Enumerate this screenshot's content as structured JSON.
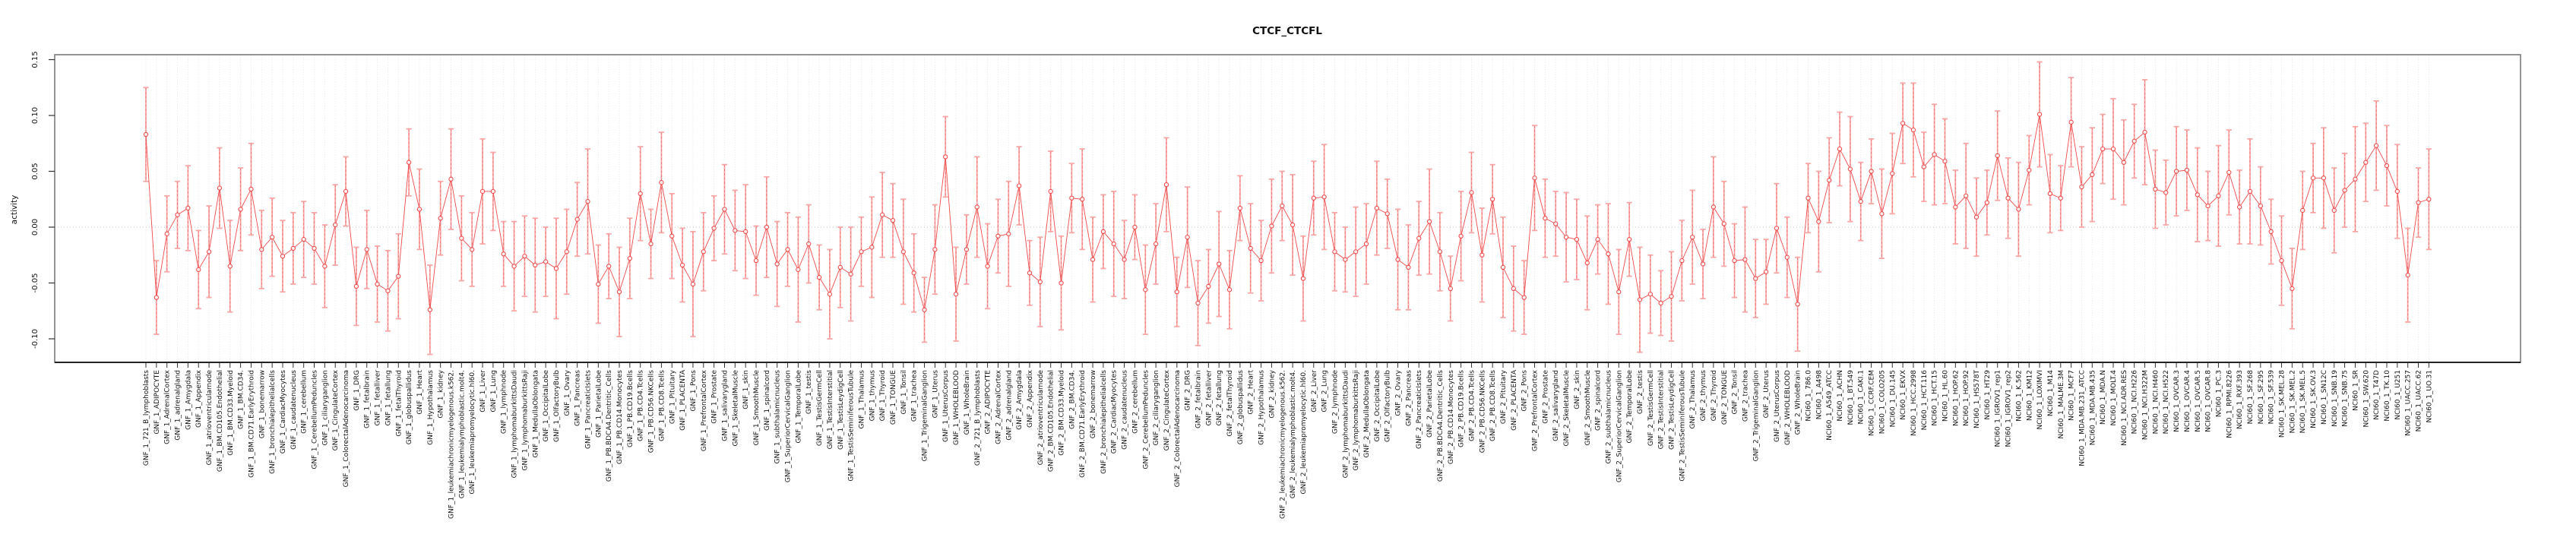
{
  "chart_data": {
    "type": "scatter",
    "title": "CTCF_CTCFL",
    "ylabel": "activity",
    "xlabel": "",
    "ylim": [
      -0.121,
      0.154
    ],
    "yticks": [
      0.15,
      0.1,
      0.05,
      0.0,
      -0.05,
      -0.1
    ],
    "ytick_labels": [
      "0.15",
      "0.10",
      "0.05",
      "0.00",
      "-0.05",
      "-0.10"
    ],
    "zero_reference_line": 0.0,
    "grid": "vertical-dotted-per-category",
    "legend": "none",
    "marker": "open-circle-with-error-bars",
    "series_color": "#ef4a4a",
    "errorbar_color": "#f8a6a6",
    "errorbar_dash_color": "#f07070",
    "n_points": 218,
    "categories": [
      "GNF_1_721_B_lymphoblasts",
      "GNF_1_ADIPOCYTE",
      "GNF_1_AdrenalCortex",
      "GNF_1_adrenalgland",
      "GNF_1_Amygdala",
      "GNF_1_Appendix",
      "GNF_1_atrioventricularnode",
      "GNF_1_BM.CD105.Endothelial",
      "GNF_1_BM.CD33.Myeloid",
      "GNF_1_BM.CD34.",
      "GNF_1_BM.CD71.EarlyErythroid",
      "GNF_1_bonemarrow",
      "GNF_1_bronchialepithelialcells",
      "GNF_1_CardiacMyocytes",
      "GNF_1_caudatenucleus",
      "GNF_1_cerebellum",
      "GNF_1_CerebellumPeduncles",
      "GNF_1_ciliaryganglion",
      "GNF_1_CingulateCortex",
      "GNF_1_ColorectalAdenocarcinoma",
      "GNF_1_DRG",
      "GNF_1_fetalbrain",
      "GNF_1_fetalliver",
      "GNF_1_fetallung",
      "GNF_1_fetalThyroid",
      "GNF_1_globuspallidus",
      "GNF_1_Heart",
      "GNF_1_Hypothalamus",
      "GNF_1_kidney",
      "GNF_1_leukemiachronicmyelogenous.k562.",
      "GNF_1_leukemialymphoblastic.molt4.",
      "GNF_1_leukemiapromyelocytic.hl60.",
      "GNF_1_Liver",
      "GNF_1_Lung",
      "GNF_1_lymphnode",
      "GNF_1_lymphomaburkittsDaudi",
      "GNF_1_lymphomaburkittsRaji",
      "GNF_1_MedullaOblongata",
      "GNF_1_OccipitalLobe",
      "GNF_1_OlfactoryBulb",
      "GNF_1_Ovary",
      "GNF_1_Pancreas",
      "GNF_1_PancreaticIslets",
      "GNF_1_ParietalLobe",
      "GNF_1_PB.BDCA4.Dentritic_Cells",
      "GNF_1_PB.CD14.Monocytes",
      "GNF_1_PB.CD19.Bcells",
      "GNF_1_PB.CD4.Tcells",
      "GNF_1_PB.CD56.NKCells",
      "GNF_1_PB.CD8.Tcells",
      "GNF_1_Pituitary",
      "GNF_1_PLACENTA",
      "GNF_1_Pons",
      "GNF_1_PrefrontalCortex",
      "GNF_1_Prostate",
      "GNF_1_salivarygland",
      "GNF_1_SkeletalMuscle",
      "GNF_1_skin",
      "GNF_1_SmoothMuscle",
      "GNF_1_spinalcord",
      "GNF_1_subthalamicnucleus",
      "GNF_1_SuperiorCervicalGanglion",
      "GNF_1_TemporalLobe",
      "GNF_1_testis",
      "GNF_1_TestisGermCell",
      "GNF_1_TestisInterstitial",
      "GNF_1_TestisLeydigCell",
      "GNF_1_TestisSeminiferousTubule",
      "GNF_1_Thalamus",
      "GNF_1_thymus",
      "GNF_1_Thyroid",
      "GNF_1_TONGUE",
      "GNF_1_Tonsil",
      "GNF_1_trachea",
      "GNF_1_TrigeminalGanglion",
      "GNF_1_Uterus",
      "GNF_1_UterusCorpus",
      "GNF_1_WHOLEBLOOD",
      "GNF_1_WholeBrain",
      "GNF_2_721_B_lymphoblasts",
      "GNF_2_ADIPOCYTE",
      "GNF_2_AdrenalCortex",
      "GNF_2_adrenalgland",
      "GNF_2_Amygdala",
      "GNF_2_Appendix",
      "GNF_2_atrioventricularnode",
      "GNF_2_BM.CD105.Endothelial",
      "GNF_2_BM.CD33.Myeloid",
      "GNF_2_BM.CD34.",
      "GNF_2_BM.CD71.EarlyErythroid",
      "GNF_2_bonemarrow",
      "GNF_2_bronchialepithelialcells",
      "GNF_2_CardiacMyocytes",
      "GNF_2_caudatenucleus",
      "GNF_2_cerebellum",
      "GNF_2_CerebellumPeduncles",
      "GNF_2_ciliaryganglion",
      "GNF_2_CingulateCortex",
      "GNF_2_ColorectalAdenocarcinoma",
      "GNF_2_DRG",
      "GNF_2_fetalbrain",
      "GNF_2_fetalliver",
      "GNF_2_fetallung",
      "GNF_2_fetalThyroid",
      "GNF_2_globuspallidus",
      "GNF_2_Heart",
      "GNF_2_Hypothalamus",
      "GNF_2_kidney",
      "GNF_2_leukemiachronicmyelogenous.k562.",
      "GNF_2_leukemialymphoblastic.molt4.",
      "GNF_2_leukemiapromyelocytic.hl60.",
      "GNF_2_Liver",
      "GNF_2_Lung",
      "GNF_2_lymphnode",
      "GNF_2_lymphomaburkittsDaudi",
      "GNF_2_lymphomaburkittsRaji",
      "GNF_2_MedullaOblongata",
      "GNF_2_OccipitalLobe",
      "GNF_2_OlfactoryBulb",
      "GNF_2_Ovary",
      "GNF_2_Pancreas",
      "GNF_2_PancreaticIslets",
      "GNF_2_ParietalLobe",
      "GNF_2_PB.BDCA4.Dentritic_Cells",
      "GNF_2_PB.CD14.Monocytes",
      "GNF_2_PB.CD19.Bcells",
      "GNF_2_PB.CD4.Tcells",
      "GNF_2_PB.CD56.NKCells",
      "GNF_2_PB.CD8.Tcells",
      "GNF_2_Pituitary",
      "GNF_2_PLACENTA",
      "GNF_2_Pons",
      "GNF_2_PrefrontalCortex",
      "GNF_2_Prostate",
      "GNF_2_salivarygland",
      "GNF_2_SkeletalMuscle",
      "GNF_2_skin",
      "GNF_2_SmoothMuscle",
      "GNF_2_spinalcord",
      "GNF_2_subthalamicnucleus",
      "GNF_2_SuperiorCervicalGanglion",
      "GNF_2_TemporalLobe",
      "GNF_2_testis",
      "GNF_2_TestisGermCell",
      "GNF_2_TestisInterstitial",
      "GNF_2_TestisLeydigCell",
      "GNF_2_TestisSeminiferousTubule",
      "GNF_2_Thalamus",
      "GNF_2_thymus",
      "GNF_2_Thyroid",
      "GNF_2_TONGUE",
      "GNF_2_Tonsil",
      "GNF_2_trachea",
      "GNF_2_TrigeminalGanglion",
      "GNF_2_Uterus",
      "GNF_2_UterusCorpus",
      "GNF_2_WHOLEBLOOD",
      "GNF_2_WholeBrain",
      "NCI60_1_786.0",
      "NCI60_1_A498",
      "NCI60_1_A549_ATCC",
      "NCI60_1_ACHN",
      "NCI60_1_BT.549",
      "NCI60_1_CAKI.1",
      "NCI60_1_CCRF.CEM",
      "NCI60_1_COLO205",
      "NCI60_1_DU.145",
      "NCI60_1_EKVX",
      "NCI60_1_HCC.2998",
      "NCI60_1_HCT.116",
      "NCI60_1_HCT.15",
      "NCI60_1_HL.60",
      "NCI60_1_HOP.62",
      "NCI60_1_HOP.92",
      "NCI60_1_HS578T",
      "NCI60_1_HT29",
      "NCI60_1_IGROV1_rep1",
      "NCI60_1_IGROV1_rep2",
      "NCI60_1_K.562",
      "NCI60_1_KM12",
      "NCI60_1_LOXIMVI",
      "NCI60_1_M14",
      "NCI60_1_MALME.3M",
      "NCI60_1_MCF7",
      "NCI60_1_MDA.MB.231_ATCC",
      "NCI60_1_MDA.MB.435",
      "NCI60_1_MDA.N",
      "NCI60_1_MOLT.4",
      "NCI60_1_NCI.ADR.RES",
      "NCI60_1_NCI.H226",
      "NCI60_1_NCI.H322M",
      "NCI60_1_NCI.H460",
      "NCI60_1_NCI.H522",
      "NCI60_1_OVCAR.3",
      "NCI60_1_OVCAR.4",
      "NCI60_1_OVCAR.5",
      "NCI60_1_OVCAR.8",
      "NCI60_1_PC.3",
      "NCI60_1_RPMI.8226",
      "NCI60_1_RXF.393",
      "NCI60_1_SF.268",
      "NCI60_1_SF.295",
      "NCI60_1_SF.539",
      "NCI60_1_SK.MEL.28",
      "NCI60_1_SK.MEL.2",
      "NCI60_1_SK.MEL.5",
      "NCI60_1_SK.OV.3",
      "NCI60_1_SN12C",
      "NCI60_1_SNB.19",
      "NCI60_1_SNB.75",
      "NCI60_1_SR",
      "NCI60_1_SW.620",
      "NCI60_1_T47D",
      "NCI60_1_TK.10",
      "NCI60_1_U251",
      "NCI60_1_UACC.257",
      "NCI60_1_UACC.62",
      "NCI60_1_UO.31"
    ],
    "values": [
      0.083,
      -0.063,
      -0.006,
      0.011,
      0.017,
      -0.038,
      -0.022,
      0.035,
      -0.035,
      0.016,
      0.034,
      -0.02,
      -0.009,
      -0.026,
      -0.019,
      -0.011,
      -0.019,
      -0.035,
      0.002,
      0.032,
      -0.053,
      -0.02,
      -0.051,
      -0.057,
      -0.044,
      0.058,
      0.016,
      -0.074,
      0.008,
      0.043,
      -0.01,
      -0.02,
      0.032,
      0.032,
      -0.024,
      -0.035,
      -0.026,
      -0.034,
      -0.031,
      -0.037,
      -0.022,
      0.007,
      0.023,
      -0.051,
      -0.035,
      -0.058,
      -0.028,
      0.03,
      -0.015,
      0.04,
      -0.008,
      -0.034,
      -0.051,
      -0.022,
      -0.001,
      0.016,
      -0.003,
      -0.004,
      -0.03,
      0.0,
      -0.033,
      -0.02,
      -0.038,
      -0.015,
      -0.045,
      -0.06,
      -0.036,
      -0.042,
      -0.022,
      -0.018,
      0.011,
      0.006,
      -0.022,
      -0.041,
      -0.074,
      -0.02,
      0.063,
      -0.06,
      -0.02,
      0.018,
      -0.035,
      -0.008,
      -0.006,
      0.037,
      -0.041,
      -0.049,
      0.032,
      -0.05,
      0.026,
      0.025,
      -0.029,
      -0.004,
      -0.015,
      -0.029,
      0.0,
      -0.056,
      -0.015,
      0.038,
      -0.058,
      -0.009,
      -0.068,
      -0.053,
      -0.033,
      -0.056,
      0.017,
      -0.019,
      -0.03,
      0.001,
      0.019,
      0.002,
      -0.046,
      0.026,
      0.027,
      -0.022,
      -0.029,
      -0.022,
      -0.015,
      0.017,
      0.012,
      -0.029,
      -0.036,
      -0.01,
      0.005,
      -0.022,
      -0.055,
      -0.008,
      0.031,
      -0.025,
      0.025,
      -0.036,
      -0.055,
      -0.063,
      0.044,
      0.008,
      0.003,
      -0.009,
      -0.011,
      -0.032,
      -0.011,
      -0.024,
      -0.058,
      -0.011,
      -0.065,
      -0.06,
      -0.068,
      -0.062,
      -0.03,
      -0.009,
      -0.033,
      0.018,
      0.003,
      -0.03,
      -0.029,
      -0.046,
      -0.04,
      -0.001,
      -0.027,
      -0.069,
      0.026,
      0.005,
      0.042,
      0.07,
      0.052,
      0.023,
      0.05,
      0.012,
      0.048,
      0.093,
      0.087,
      0.054,
      0.065,
      0.059,
      0.018,
      0.028,
      0.009,
      0.022,
      0.064,
      0.026,
      0.016,
      0.051,
      0.101,
      0.03,
      0.026,
      0.094,
      0.036,
      0.047,
      0.07,
      0.07,
      0.058,
      0.077,
      0.085,
      0.034,
      0.031,
      0.05,
      0.051,
      0.029,
      0.019,
      0.028,
      0.049,
      0.018,
      0.032,
      0.019,
      -0.004,
      -0.03,
      -0.055,
      0.015,
      0.044,
      0.044,
      0.015,
      0.033,
      0.043,
      0.058,
      0.073,
      0.055,
      0.032,
      -0.043,
      0.022,
      0.025
    ],
    "ci_halfwidth": [
      0.042,
      0.033,
      0.034,
      0.03,
      0.038,
      0.035,
      0.041,
      0.036,
      0.041,
      0.037,
      0.041,
      0.035,
      0.035,
      0.032,
      0.032,
      0.034,
      0.032,
      0.037,
      0.036,
      0.031,
      0.035,
      0.035,
      0.034,
      0.036,
      0.038,
      0.03,
      0.036,
      0.04,
      0.033,
      0.045,
      0.038,
      0.033,
      0.047,
      0.035,
      0.029,
      0.04,
      0.036,
      0.042,
      0.031,
      0.045,
      0.038,
      0.033,
      0.047,
      0.035,
      0.029,
      0.04,
      0.036,
      0.042,
      0.031,
      0.045,
      0.038,
      0.033,
      0.047,
      0.035,
      0.029,
      0.04,
      0.036,
      0.042,
      0.031,
      0.045,
      0.038,
      0.033,
      0.047,
      0.035,
      0.029,
      0.04,
      0.036,
      0.042,
      0.031,
      0.045,
      0.038,
      0.033,
      0.047,
      0.035,
      0.029,
      0.04,
      0.036,
      0.042,
      0.031,
      0.045,
      0.038,
      0.033,
      0.047,
      0.035,
      0.029,
      0.04,
      0.036,
      0.042,
      0.031,
      0.045,
      0.038,
      0.033,
      0.047,
      0.035,
      0.029,
      0.04,
      0.036,
      0.042,
      0.031,
      0.045,
      0.038,
      0.033,
      0.047,
      0.035,
      0.029,
      0.04,
      0.036,
      0.042,
      0.031,
      0.045,
      0.038,
      0.033,
      0.047,
      0.035,
      0.029,
      0.04,
      0.036,
      0.042,
      0.031,
      0.045,
      0.038,
      0.033,
      0.047,
      0.035,
      0.029,
      0.04,
      0.036,
      0.042,
      0.031,
      0.045,
      0.038,
      0.033,
      0.047,
      0.035,
      0.029,
      0.04,
      0.036,
      0.042,
      0.031,
      0.045,
      0.038,
      0.033,
      0.047,
      0.035,
      0.029,
      0.04,
      0.036,
      0.042,
      0.031,
      0.045,
      0.038,
      0.033,
      0.047,
      0.035,
      0.029,
      0.04,
      0.036,
      0.042,
      0.031,
      0.045,
      0.038,
      0.033,
      0.047,
      0.035,
      0.029,
      0.04,
      0.036,
      0.036,
      0.042,
      0.031,
      0.045,
      0.038,
      0.033,
      0.047,
      0.035,
      0.029,
      0.04,
      0.036,
      0.042,
      0.031,
      0.047,
      0.035,
      0.029,
      0.04,
      0.036,
      0.042,
      0.031,
      0.045,
      0.038,
      0.033,
      0.047,
      0.035,
      0.029,
      0.04,
      0.036,
      0.042,
      0.031,
      0.045,
      0.038,
      0.033,
      0.047,
      0.035,
      0.029,
      0.04,
      0.036,
      0.035,
      0.031,
      0.045,
      0.038,
      0.033,
      0.047,
      0.035,
      0.04,
      0.036,
      0.042,
      0.042,
      0.031,
      0.045
    ]
  }
}
